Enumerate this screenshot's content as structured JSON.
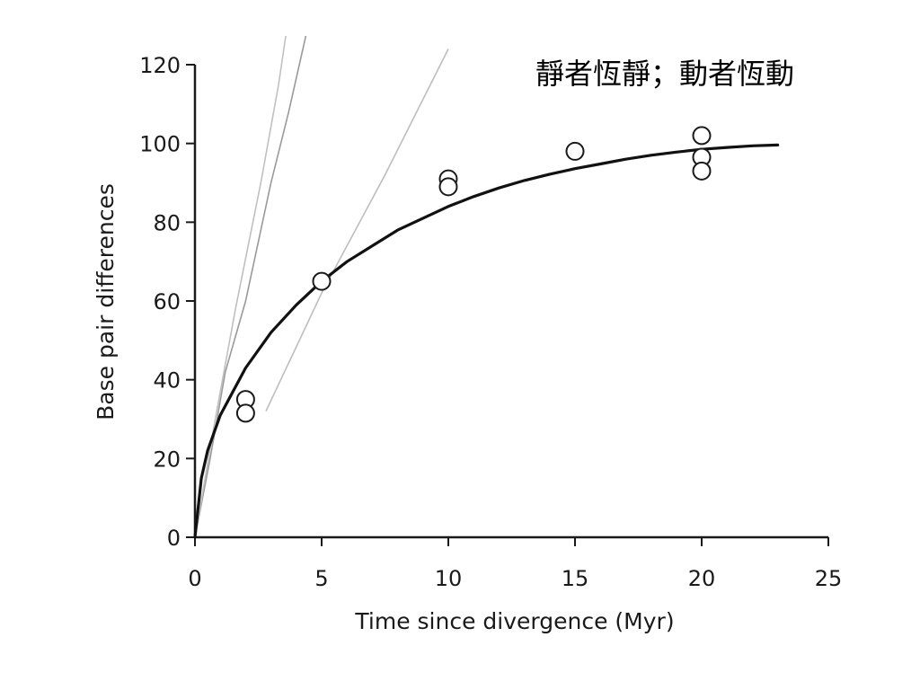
{
  "caption": "靜者恆靜；動者恆動",
  "chart_data": {
    "type": "scatter",
    "title": "",
    "xlabel": "Time since divergence (Myr)",
    "ylabel": "Base pair differences",
    "xlim": [
      0,
      25
    ],
    "ylim": [
      0,
      120
    ],
    "xticks": [
      0,
      5,
      10,
      15,
      20,
      25
    ],
    "yticks": [
      0,
      20,
      40,
      60,
      80,
      100,
      120
    ],
    "xtick_labels": [
      "0",
      "5",
      "10",
      "15",
      "20",
      "25"
    ],
    "ytick_labels": [
      "0",
      "20",
      "40",
      "60",
      "80",
      "100",
      "120"
    ],
    "grid": false,
    "points": [
      {
        "x": 2,
        "y": 35
      },
      {
        "x": 2,
        "y": 31.5
      },
      {
        "x": 5,
        "y": 65
      },
      {
        "x": 10,
        "y": 91
      },
      {
        "x": 10,
        "y": 89
      },
      {
        "x": 15,
        "y": 98
      },
      {
        "x": 20,
        "y": 102
      },
      {
        "x": 20,
        "y": 96.5
      },
      {
        "x": 20,
        "y": 93
      }
    ],
    "fit_curve": [
      {
        "x": 0,
        "y": 0
      },
      {
        "x": 0.25,
        "y": 15
      },
      {
        "x": 0.5,
        "y": 22
      },
      {
        "x": 1,
        "y": 31
      },
      {
        "x": 2,
        "y": 43
      },
      {
        "x": 3,
        "y": 52
      },
      {
        "x": 4,
        "y": 59
      },
      {
        "x": 5,
        "y": 65
      },
      {
        "x": 6,
        "y": 70
      },
      {
        "x": 7,
        "y": 74
      },
      {
        "x": 8,
        "y": 78
      },
      {
        "x": 9,
        "y": 81
      },
      {
        "x": 10,
        "y": 84
      },
      {
        "x": 11,
        "y": 86.5
      },
      {
        "x": 12,
        "y": 88.7
      },
      {
        "x": 13,
        "y": 90.6
      },
      {
        "x": 14,
        "y": 92.2
      },
      {
        "x": 15,
        "y": 93.6
      },
      {
        "x": 16,
        "y": 94.8
      },
      {
        "x": 17,
        "y": 96
      },
      {
        "x": 18,
        "y": 97
      },
      {
        "x": 19,
        "y": 97.8
      },
      {
        "x": 20,
        "y": 98.5
      },
      {
        "x": 21,
        "y": 99
      },
      {
        "x": 22,
        "y": 99.4
      },
      {
        "x": 23,
        "y": 99.6
      }
    ],
    "faint_lines": [
      {
        "name": "",
        "color": "#9a9a9a",
        "points": [
          {
            "x": 0,
            "y": 0
          },
          {
            "x": 0.6,
            "y": 20
          },
          {
            "x": 1.2,
            "y": 42
          },
          {
            "x": 2,
            "y": 60
          },
          {
            "x": 3,
            "y": 90
          },
          {
            "x": 3.7,
            "y": 108
          },
          {
            "x": 4.4,
            "y": 128
          }
        ]
      },
      {
        "name": "",
        "color": "#c0c0c0",
        "points": [
          {
            "x": 0,
            "y": 0
          },
          {
            "x": 0.8,
            "y": 30
          },
          {
            "x": 1.6,
            "y": 58
          },
          {
            "x": 2.6,
            "y": 90
          },
          {
            "x": 3.3,
            "y": 115
          },
          {
            "x": 3.6,
            "y": 128
          }
        ]
      },
      {
        "name": "",
        "color": "#bdbdbd",
        "points": [
          {
            "x": 2.8,
            "y": 32
          },
          {
            "x": 5,
            "y": 62
          },
          {
            "x": 7.5,
            "y": 92
          },
          {
            "x": 10,
            "y": 124
          }
        ]
      }
    ],
    "colors": {
      "axis": "#1a1a1a",
      "fit": "#111111",
      "marker_edge": "#1a1a1a",
      "marker_fill": "#ffffff"
    }
  }
}
